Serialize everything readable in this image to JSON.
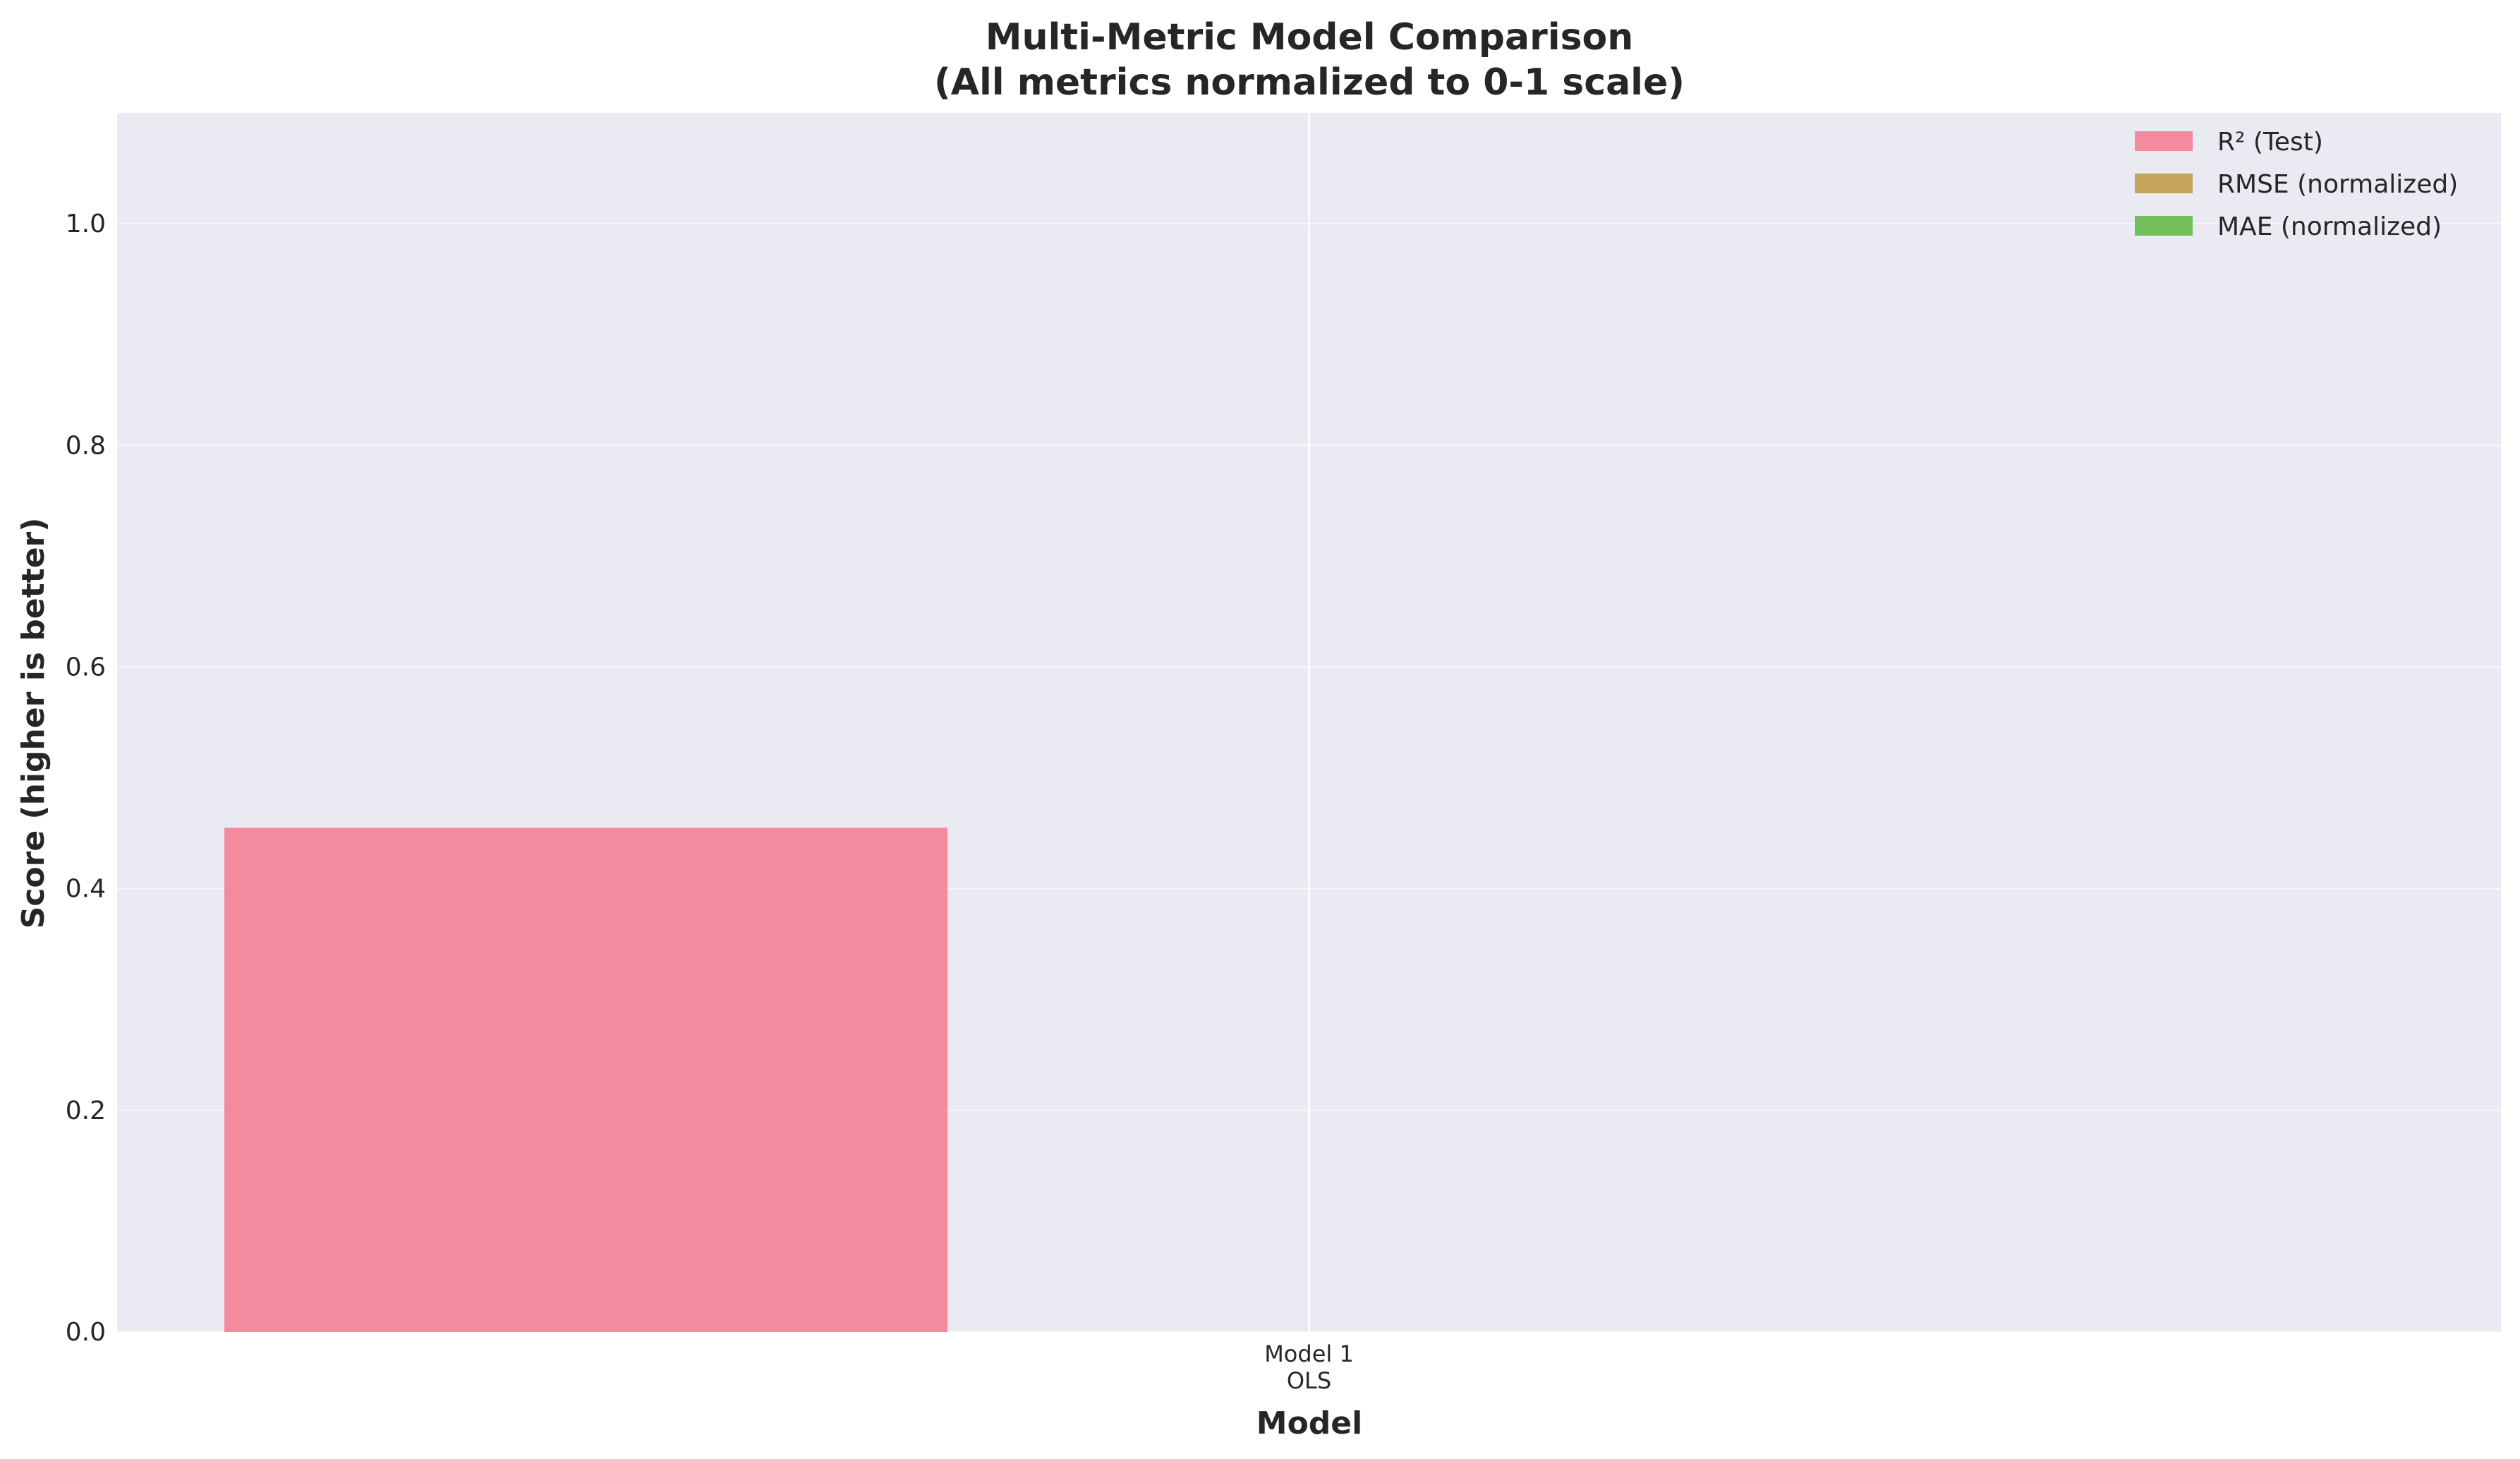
{
  "chart_data": {
    "type": "bar",
    "title": "Multi-Metric Model Comparison",
    "subtitle": "(All metrics normalized to 0-1 scale)",
    "xlabel": "Model",
    "ylabel": "Score (higher is better)",
    "ylim": [
      0,
      1.1
    ],
    "yticks": [
      "0.0",
      "0.2",
      "0.4",
      "0.6",
      "0.8",
      "1.0"
    ],
    "ytick_values": [
      0,
      0.2,
      0.4,
      0.6,
      0.8,
      1.0
    ],
    "categories": [
      {
        "line1": "Model 1",
        "line2": "OLS"
      }
    ],
    "series": [
      {
        "name": "R² (Test)",
        "color": "#f48a9e",
        "values": [
          0.455
        ]
      },
      {
        "name": "RMSE (normalized)",
        "color": "#c4a45a",
        "values": [
          0.0
        ]
      },
      {
        "name": "MAE (normalized)",
        "color": "#72bf5c",
        "values": [
          0.0
        ]
      }
    ],
    "grid": true,
    "legend_placement": "top-right",
    "plot_background": "#eaeaf2",
    "grid_color": "#ffffff"
  }
}
